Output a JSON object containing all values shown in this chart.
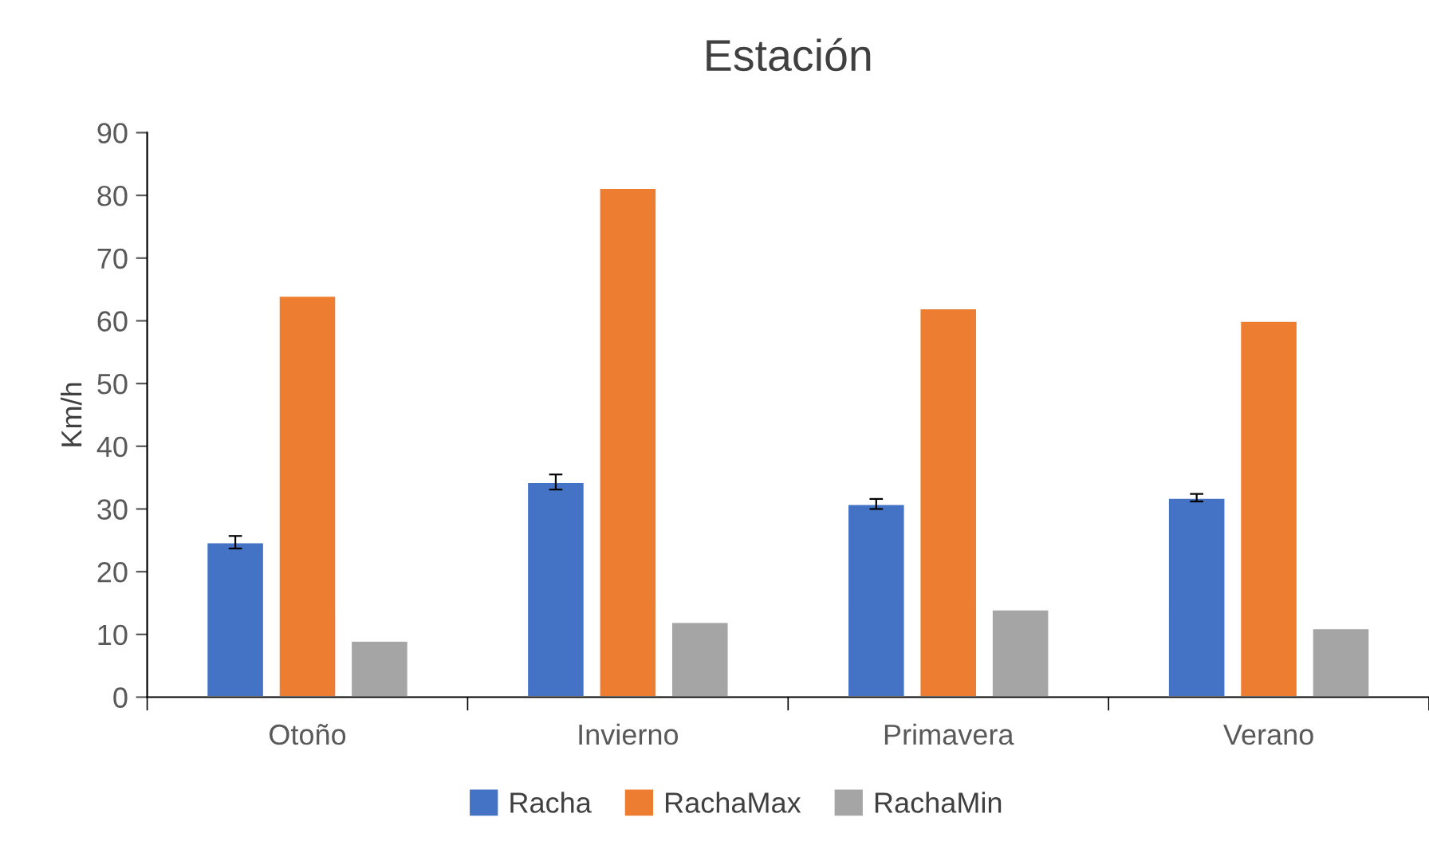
{
  "chart_data": {
    "type": "bar",
    "title": "Estación",
    "ylabel": "Km/h",
    "categories": [
      "Otoño",
      "Invierno",
      "Primavera",
      "Verano"
    ],
    "series": [
      {
        "name": "Racha",
        "color": "#4472c4",
        "values": [
          24.7,
          34.3,
          30.8,
          31.8
        ],
        "errors": [
          1.0,
          1.2,
          0.8,
          0.6
        ]
      },
      {
        "name": "RachaMax",
        "color": "#ed7d31",
        "values": [
          64,
          81.2,
          62,
          60
        ]
      },
      {
        "name": "RachaMin",
        "color": "#a5a5a5",
        "values": [
          9,
          12,
          14,
          11
        ]
      }
    ],
    "ylim": [
      0,
      90
    ],
    "yticks": [
      0,
      10,
      20,
      30,
      40,
      50,
      60,
      70,
      80,
      90
    ],
    "grid": false,
    "legend": "bottom"
  }
}
